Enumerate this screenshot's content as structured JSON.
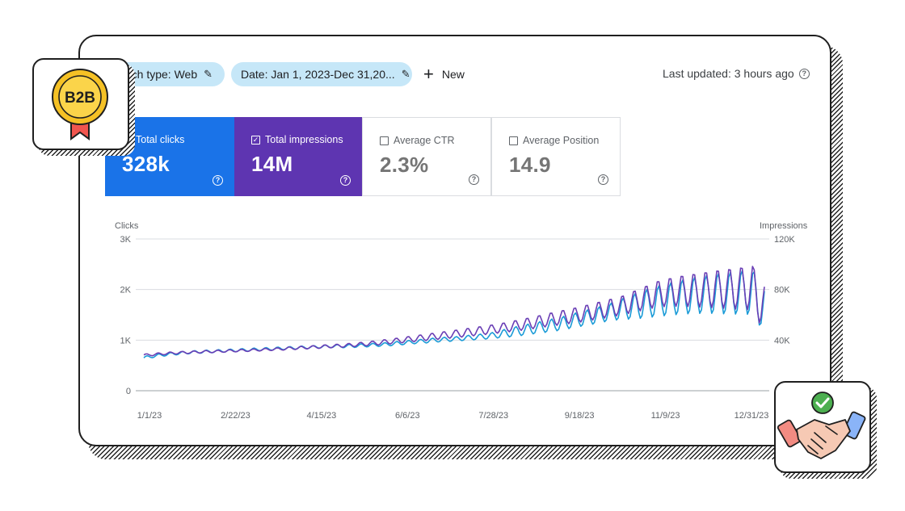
{
  "filters": {
    "search_type": "rch type: Web",
    "date": "Date: Jan 1, 2023-Dec 31,20...",
    "new_label": "New"
  },
  "last_updated": "Last updated: 3 hours ago",
  "metrics": {
    "clicks": {
      "label": "Total clicks",
      "value": "328k",
      "checked": true,
      "color": "#1a73e8"
    },
    "impressions": {
      "label": "Total impressions",
      "value": "14M",
      "checked": true,
      "color": "#5e35b1"
    },
    "ctr": {
      "label": "Average CTR",
      "value": "2.3%",
      "checked": false
    },
    "position": {
      "label": "Average Position",
      "value": "14.9",
      "checked": false
    }
  },
  "badges": {
    "b2b_text": "B2B",
    "handshake_icon": "handshake-icon",
    "check_icon": "check-circle-icon"
  },
  "chart_data": {
    "type": "line",
    "left_axis_title": "Clicks",
    "right_axis_title": "Impressions",
    "left_ticks": [
      "0",
      "1K",
      "2K",
      "3K"
    ],
    "right_ticks": [
      "40K",
      "80K",
      "120K"
    ],
    "ylim_left": [
      0,
      3000
    ],
    "ylim_right": [
      0,
      120000
    ],
    "x_ticks": [
      "1/1/23",
      "2/22/23",
      "4/15/23",
      "6/6/23",
      "7/28/23",
      "9/18/23",
      "11/9/23",
      "12/31/23"
    ],
    "series": [
      {
        "name": "Total clicks",
        "axis": "left",
        "color": "#1a9bd7",
        "weekly_base": [
          650,
          690,
          720,
          740,
          760,
          770,
          780,
          790,
          800,
          810,
          820,
          830,
          840,
          850,
          860,
          870,
          880,
          880,
          890,
          900,
          910,
          930,
          950,
          970,
          990,
          1010,
          1020,
          1040,
          1060,
          1080,
          1120,
          1160,
          1200,
          1240,
          1280,
          1320,
          1380,
          1430,
          1480,
          1540,
          1600,
          1650,
          1700,
          1750,
          1790,
          1830,
          1860,
          1880,
          1900,
          1900,
          1920,
          1930,
          1580
        ],
        "weekly_amplitude": [
          30,
          30,
          30,
          30,
          30,
          30,
          30,
          30,
          30,
          30,
          30,
          30,
          30,
          30,
          30,
          30,
          30,
          35,
          35,
          35,
          35,
          40,
          40,
          40,
          45,
          45,
          45,
          50,
          55,
          60,
          80,
          100,
          110,
          120,
          130,
          140,
          150,
          160,
          170,
          180,
          220,
          260,
          300,
          320,
          340,
          360,
          380,
          400,
          420,
          440,
          460,
          480,
          500
        ]
      },
      {
        "name": "Total impressions",
        "axis": "right",
        "color": "#6a3fb5",
        "weekly_base": [
          28000,
          28800,
          29500,
          30000,
          30400,
          30800,
          31000,
          31400,
          31700,
          32000,
          32400,
          32800,
          33300,
          33800,
          34300,
          34800,
          35300,
          35800,
          36500,
          37300,
          38200,
          39200,
          40300,
          41400,
          42500,
          43600,
          44700,
          45800,
          47000,
          48200,
          49500,
          51000,
          52500,
          54200,
          56000,
          57600,
          59200,
          61000,
          63000,
          65000,
          67000,
          70000,
          73000,
          76000,
          77500,
          78500,
          79000,
          79500,
          80000,
          80200,
          80500,
          81000,
          64000
        ],
        "weekly_amplitude": [
          1000,
          1000,
          1000,
          1000,
          1000,
          1000,
          1000,
          1000,
          1000,
          1000,
          1000,
          1000,
          1200,
          1200,
          1200,
          1400,
          1400,
          1500,
          1600,
          1800,
          2000,
          2200,
          2400,
          2600,
          2800,
          3000,
          3200,
          3400,
          3600,
          3800,
          4000,
          4400,
          4800,
          5200,
          5600,
          6000,
          6400,
          6800,
          7200,
          7600,
          8000,
          9000,
          10000,
          11000,
          12000,
          13000,
          14000,
          15000,
          16000,
          17000,
          18000,
          19000,
          20000
        ]
      }
    ],
    "grid": true,
    "legend": "none"
  }
}
